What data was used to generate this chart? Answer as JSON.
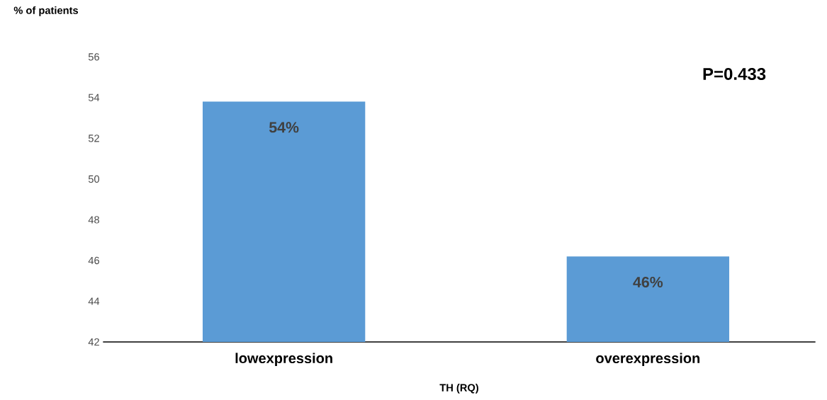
{
  "chart_data": {
    "type": "bar",
    "ylabel": "% of patients",
    "xlabel": "TH (RQ)",
    "categories": [
      "lowexpression",
      "overexpression"
    ],
    "values": [
      53.8,
      46.2
    ],
    "value_labels": [
      "54%",
      "46%"
    ],
    "color": "#5b9bd5",
    "ylim": [
      42,
      56
    ],
    "yticks": [
      42,
      44,
      46,
      48,
      50,
      52,
      54,
      56
    ],
    "annotations": [
      "P=0.433"
    ],
    "grid": false
  }
}
